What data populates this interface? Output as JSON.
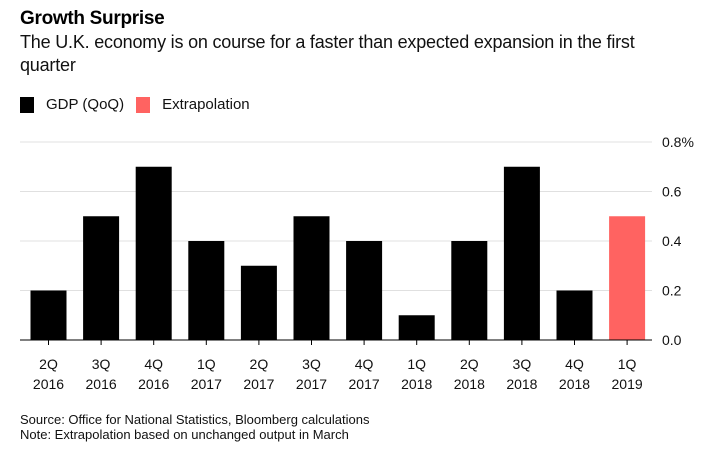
{
  "chart_data": {
    "type": "bar",
    "title": "Growth Surprise",
    "subtitle": "The U.K. economy is on course for a faster than expected expansion in the first quarter",
    "xlabel": "",
    "ylabel": "",
    "ylim": [
      0,
      0.8
    ],
    "yticks": [
      0.0,
      0.2,
      0.4,
      0.6,
      0.8
    ],
    "ytick_labels": [
      "0.0",
      "0.2",
      "0.4",
      "0.6",
      "0.8%"
    ],
    "grid": true,
    "legend_position": "top-left",
    "categories": [
      [
        "2Q",
        "2016"
      ],
      [
        "3Q",
        "2016"
      ],
      [
        "4Q",
        "2016"
      ],
      [
        "1Q",
        "2017"
      ],
      [
        "2Q",
        "2017"
      ],
      [
        "3Q",
        "2017"
      ],
      [
        "4Q",
        "2017"
      ],
      [
        "1Q",
        "2018"
      ],
      [
        "2Q",
        "2018"
      ],
      [
        "3Q",
        "2018"
      ],
      [
        "4Q",
        "2018"
      ],
      [
        "1Q",
        "2019"
      ]
    ],
    "values": [
      0.2,
      0.5,
      0.7,
      0.4,
      0.3,
      0.5,
      0.4,
      0.1,
      0.4,
      0.7,
      0.2,
      0.5
    ],
    "series_of_bar": [
      "GDP (QoQ)",
      "GDP (QoQ)",
      "GDP (QoQ)",
      "GDP (QoQ)",
      "GDP (QoQ)",
      "GDP (QoQ)",
      "GDP (QoQ)",
      "GDP (QoQ)",
      "GDP (QoQ)",
      "GDP (QoQ)",
      "GDP (QoQ)",
      "Extrapolation"
    ],
    "legend": [
      {
        "name": "GDP (QoQ)",
        "color": "#000000"
      },
      {
        "name": "Extrapolation",
        "color": "#ff6361"
      }
    ]
  },
  "footer": {
    "source": "Source: Office for National Statistics, Bloomberg calculations",
    "note": "Note: Extrapolation based on unchanged output in March"
  },
  "colors": {
    "gdp": "#000000",
    "extrapolation": "#ff6361",
    "grid": "#e0e0e0",
    "axis": "#000000"
  }
}
